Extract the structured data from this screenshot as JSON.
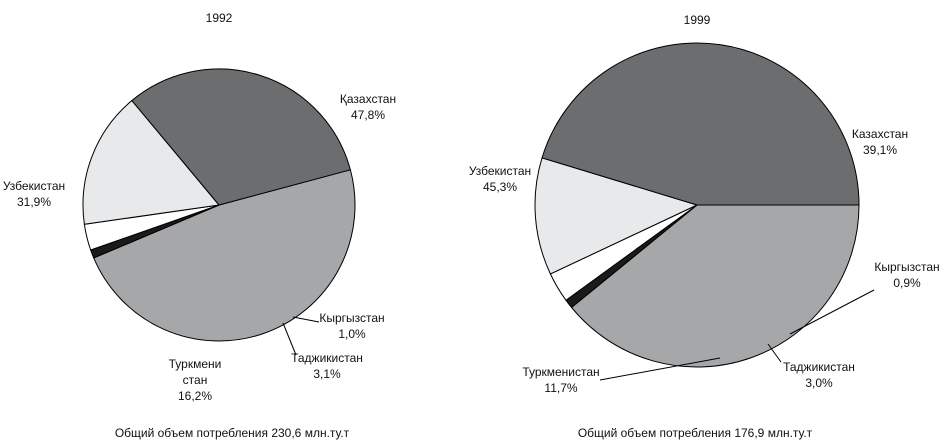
{
  "colors": {
    "Казахстан": "#a6a7a9",
    "Узбекистан": "#6c6d6f",
    "Туркменистан": "#e8e9ea",
    "Таджикистан": "#ffffff",
    "Кыргызстан": "#1a1a1a"
  },
  "chart_data": [
    {
      "type": "pie",
      "title": "1992",
      "caption": "Общий объем потребления 230,6 млн.ту.т",
      "labels": [
        {
          "key": "kaz",
          "lines": [
            "Қазахстан",
            "47,8%"
          ]
        },
        {
          "key": "kyr",
          "lines": [
            "Кыргызстан",
            "1,0%"
          ]
        },
        {
          "key": "taj",
          "lines": [
            "Таджикистан",
            "3,1%"
          ]
        },
        {
          "key": "tur",
          "lines": [
            "Туркмени",
            "стан",
            "16,2%"
          ]
        },
        {
          "key": "uzb",
          "lines": [
            "Узбекистан",
            "31,9%"
          ]
        }
      ],
      "slices": [
        {
          "key": "kaz",
          "name": "Қазахстан",
          "value": 47.8
        },
        {
          "key": "kyr",
          "name": "Кыргызстан",
          "value": 1.0
        },
        {
          "key": "taj",
          "name": "Таджикистан",
          "value": 3.1
        },
        {
          "key": "tur",
          "name": "Туркменистан",
          "value": 16.2
        },
        {
          "key": "uzb",
          "name": "Узбекистан",
          "value": 31.9
        }
      ]
    },
    {
      "type": "pie",
      "title": "1999",
      "caption": "Общий объем потребления 176,9 млн.ту.т",
      "labels": [
        {
          "key": "kaz",
          "lines": [
            "Казахстан",
            "39,1%"
          ]
        },
        {
          "key": "kyr",
          "lines": [
            "Кыргызстан",
            "0,9%"
          ]
        },
        {
          "key": "taj",
          "lines": [
            "Таджикистан",
            "3,0%"
          ]
        },
        {
          "key": "tur",
          "lines": [
            "Туркменистан",
            "11,7%"
          ]
        },
        {
          "key": "uzb",
          "lines": [
            "Узбекистан",
            "45,3%"
          ]
        }
      ],
      "slices": [
        {
          "key": "kaz",
          "name": "Казахстан",
          "value": 39.1
        },
        {
          "key": "kyr",
          "name": "Кыргызстан",
          "value": 0.9
        },
        {
          "key": "taj",
          "name": "Таджикистан",
          "value": 3.0
        },
        {
          "key": "tur",
          "name": "Туркменистан",
          "value": 11.7
        },
        {
          "key": "uzb",
          "name": "Узбекистан",
          "value": 45.3
        }
      ]
    }
  ]
}
